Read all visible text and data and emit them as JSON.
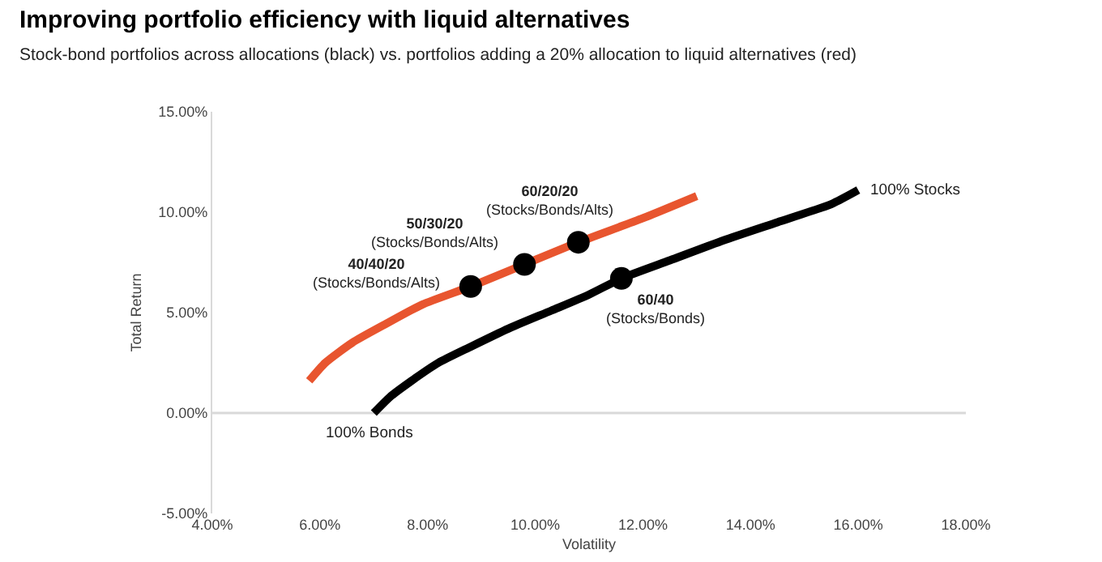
{
  "chart_data": {
    "type": "line",
    "title": "Improving portfolio efficiency with liquid alternatives",
    "subtitle": "Stock-bond portfolios across allocations (black) vs. portfolios adding a 20% allocation to liquid alternatives (red)",
    "xlabel": "Volatility",
    "ylabel": "Total Return",
    "xlim": [
      4,
      18
    ],
    "xticks": [
      {
        "value": 4,
        "label": "4.00%"
      },
      {
        "value": 6,
        "label": "6.00%"
      },
      {
        "value": 8,
        "label": "8.00%"
      },
      {
        "value": 10,
        "label": "10.00%"
      },
      {
        "value": 12,
        "label": "12.00%"
      },
      {
        "value": 14,
        "label": "14.00%"
      },
      {
        "value": 16,
        "label": "16.00%"
      },
      {
        "value": 18,
        "label": "18.00%"
      }
    ],
    "ylim": [
      -5,
      15
    ],
    "yticks": [
      {
        "value": -5,
        "label": "-5.00%"
      },
      {
        "value": 0,
        "label": "0.00%"
      },
      {
        "value": 5,
        "label": "5.00%"
      },
      {
        "value": 10,
        "label": "10.00%"
      },
      {
        "value": 15,
        "label": "15.00%"
      }
    ],
    "grid": false,
    "line_style": "solid",
    "ref_lines": [
      {
        "axis": "y",
        "value": 0,
        "color": "#d9d9d9"
      }
    ],
    "series": [
      {
        "color": "#000000",
        "x": [
          7.0,
          7.3,
          7.7,
          8.2,
          8.8,
          9.5,
          10.3,
          11.0,
          11.6,
          12.5,
          13.5,
          14.5,
          15.5,
          16.0
        ],
        "values": [
          0,
          0.8,
          1.6,
          2.5,
          3.3,
          4.2,
          5.1,
          5.9,
          6.7,
          7.6,
          8.6,
          9.5,
          10.4,
          11.1
        ]
      },
      {
        "color": "#e8552f",
        "x": [
          5.8,
          6.1,
          6.6,
          7.2,
          7.9,
          8.8,
          9.8,
          10.8,
          12.0,
          13.0
        ],
        "values": [
          1.6,
          2.5,
          3.5,
          4.4,
          5.4,
          6.3,
          7.4,
          8.5,
          9.7,
          10.8
        ]
      },
      {
        "type": "scatter",
        "marker": "circle",
        "color": "#000000",
        "x": [
          8.8,
          9.8,
          10.8,
          11.6
        ],
        "values": [
          6.3,
          7.4,
          8.5,
          6.7
        ]
      }
    ],
    "annotations": [
      {
        "text": "40/40/20\n(Stocks/Bonds/Alts)",
        "x": 8.8,
        "y": 6.3
      },
      {
        "text": "50/30/20\n(Stocks/Bonds/Alts)",
        "x": 9.8,
        "y": 7.4
      },
      {
        "text": "60/20/20\n(Stocks/Bonds/Alts)",
        "x": 10.8,
        "y": 8.5
      },
      {
        "text": "60/40\n(Stocks/Bonds)",
        "x": 11.6,
        "y": 6.7
      },
      {
        "text": "100% Stocks",
        "x": 16.0,
        "y": 11.1
      },
      {
        "text": "100% Bonds",
        "x": 7.0,
        "y": 0
      }
    ]
  }
}
